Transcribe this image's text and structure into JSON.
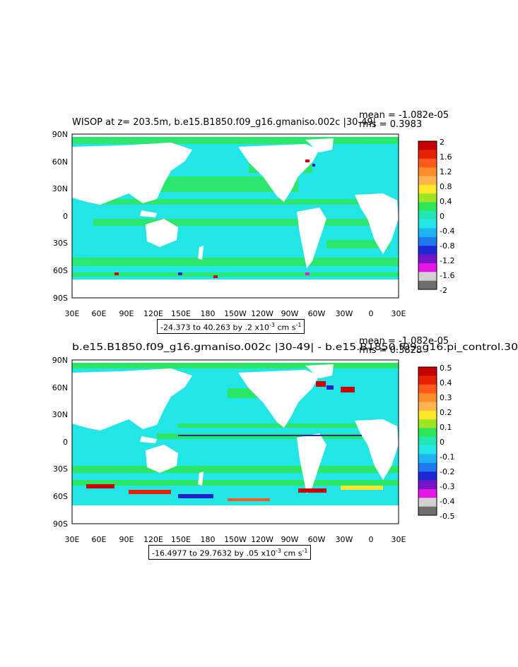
{
  "panels": [
    {
      "title": "WISOP at z= 203.5m, b.e15.B1850.f09_g16.gmaniso.002c |30-49|",
      "mean_text": "mean = -1.082e-05",
      "rms_text": "rms = 0.3983",
      "range_text": "-24.373 to 40.263 by .2",
      "units": "x10",
      "units_exp": "-3",
      "units_tail": "cm s",
      "units_tail_exp": "-1",
      "colorbar_labels": [
        "2",
        "1.6",
        "1.2",
        "0.8",
        "0.4",
        "0",
        "-0.4",
        "-0.8",
        "-1.2",
        "-1.6",
        "-2"
      ]
    },
    {
      "title": "b.e15.B1850.f09_g16.gmaniso.002c |30-49| - b.e15.B1850.f09_g16.pi_control.30",
      "mean_text": "mean = -1.082e-05",
      "rms_text": "rms = 0.3828",
      "range_text": "-16.4977 to 29.7632 by .05",
      "units": "x10",
      "units_exp": "-3",
      "units_tail": "cm s",
      "units_tail_exp": "-1",
      "colorbar_labels": [
        "0.5",
        "0.4",
        "0.3",
        "0.2",
        "0.1",
        "0",
        "-0.1",
        "-0.2",
        "-0.3",
        "-0.4",
        "-0.5"
      ]
    }
  ],
  "lat_labels": [
    "90N",
    "60N",
    "30N",
    "0",
    "30S",
    "60S",
    "90S"
  ],
  "lon_labels": [
    "30E",
    "60E",
    "90E",
    "120E",
    "150E",
    "180",
    "150W",
    "120W",
    "90W",
    "60W",
    "30W",
    "0",
    "30E"
  ],
  "colors": {
    "ocean_primary": "#22e6e6",
    "ocean_secondary": "#2ee65a",
    "land": "#ffffff",
    "extreme_pos": "#cc0000",
    "extreme_neg": "#2222cc"
  },
  "colorbar_colors": [
    "#c40000",
    "#e82000",
    "#ff5a1e",
    "#ff8c28",
    "#ffb450",
    "#ffe628",
    "#a0e61e",
    "#2ee65a",
    "#22e6b4",
    "#22e6e6",
    "#1eb4f0",
    "#1e78f0",
    "#1e28d2",
    "#7814c8",
    "#e614e6",
    "#d2d2d2",
    "#6e6e6e"
  ]
}
